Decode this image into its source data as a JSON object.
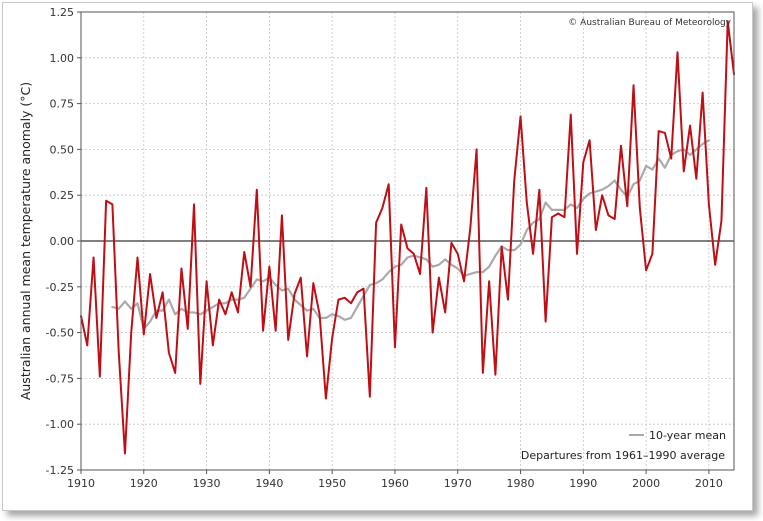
{
  "copyright": "© Australian Bureau of Meteorology",
  "chart_data": {
    "type": "line",
    "title": "",
    "xlabel": "",
    "ylabel": "Australian annual mean temperature anomaly (°C)",
    "xlim": [
      1910,
      2014
    ],
    "ylim": [
      -1.25,
      1.25
    ],
    "xticks": [
      1910,
      1920,
      1930,
      1940,
      1950,
      1960,
      1970,
      1980,
      1990,
      2000,
      2010
    ],
    "xtick_labels": [
      "1910",
      "1920",
      "1930",
      "1940",
      "1950",
      "1960",
      "1970",
      "1980",
      "1990",
      "2000",
      "2010"
    ],
    "yticks": [
      -1.25,
      -1.0,
      -0.75,
      -0.5,
      -0.25,
      0.0,
      0.25,
      0.5,
      0.75,
      1.0,
      1.25
    ],
    "ytick_labels": [
      "-1.25",
      "-1.00",
      "-0.75",
      "-0.50",
      "-0.25",
      "0.00",
      "0.25",
      "0.50",
      "0.75",
      "1.00",
      "1.25"
    ],
    "grid": true,
    "legend_position": "bottom-right",
    "annotation": "Departures from 1961–1990 average",
    "series": [
      {
        "name": "",
        "color": "#bf0f16",
        "x": [
          1910,
          1911,
          1912,
          1913,
          1914,
          1915,
          1916,
          1917,
          1918,
          1919,
          1920,
          1921,
          1922,
          1923,
          1924,
          1925,
          1926,
          1927,
          1928,
          1929,
          1930,
          1931,
          1932,
          1933,
          1934,
          1935,
          1936,
          1937,
          1938,
          1939,
          1940,
          1941,
          1942,
          1943,
          1944,
          1945,
          1946,
          1947,
          1948,
          1949,
          1950,
          1951,
          1952,
          1953,
          1954,
          1955,
          1956,
          1957,
          1958,
          1959,
          1960,
          1961,
          1962,
          1963,
          1964,
          1965,
          1966,
          1967,
          1968,
          1969,
          1970,
          1971,
          1972,
          1973,
          1974,
          1975,
          1976,
          1977,
          1978,
          1979,
          1980,
          1981,
          1982,
          1983,
          1984,
          1985,
          1986,
          1987,
          1988,
          1989,
          1990,
          1991,
          1992,
          1993,
          1994,
          1995,
          1996,
          1997,
          1998,
          1999,
          2000,
          2001,
          2002,
          2003,
          2004,
          2005,
          2006,
          2007,
          2008,
          2009,
          2010,
          2011,
          2012,
          2013,
          2014
        ],
        "values": [
          -0.41,
          -0.57,
          -0.09,
          -0.74,
          0.22,
          0.2,
          -0.6,
          -1.16,
          -0.5,
          -0.09,
          -0.51,
          -0.18,
          -0.42,
          -0.28,
          -0.61,
          -0.72,
          -0.15,
          -0.48,
          0.2,
          -0.78,
          -0.22,
          -0.57,
          -0.32,
          -0.4,
          -0.28,
          -0.39,
          -0.06,
          -0.25,
          0.28,
          -0.49,
          -0.14,
          -0.49,
          0.14,
          -0.54,
          -0.29,
          -0.2,
          -0.63,
          -0.23,
          -0.4,
          -0.86,
          -0.53,
          -0.32,
          -0.31,
          -0.34,
          -0.28,
          -0.26,
          -0.85,
          0.1,
          0.18,
          0.31,
          -0.58,
          0.09,
          -0.04,
          -0.07,
          -0.18,
          0.29,
          -0.5,
          -0.2,
          -0.39,
          -0.01,
          -0.07,
          -0.22,
          0.07,
          0.5,
          -0.72,
          -0.22,
          -0.73,
          -0.03,
          -0.32,
          0.33,
          0.68,
          0.21,
          -0.07,
          0.28,
          -0.44,
          0.13,
          0.15,
          0.13,
          0.69,
          -0.07,
          0.43,
          0.55,
          0.06,
          0.25,
          0.14,
          0.12,
          0.52,
          0.19,
          0.85,
          0.18,
          -0.16,
          -0.07,
          0.6,
          0.59,
          0.45,
          1.03,
          0.38,
          0.63,
          0.34,
          0.81,
          0.2,
          -0.13,
          0.11,
          1.2,
          0.91
        ]
      },
      {
        "name": "10-year mean",
        "color": "#aaaaaa",
        "x": [
          1915,
          1916,
          1917,
          1918,
          1919,
          1920,
          1921,
          1922,
          1923,
          1924,
          1925,
          1926,
          1927,
          1928,
          1929,
          1930,
          1931,
          1932,
          1933,
          1934,
          1935,
          1936,
          1937,
          1938,
          1939,
          1940,
          1941,
          1942,
          1943,
          1944,
          1945,
          1946,
          1947,
          1948,
          1949,
          1950,
          1951,
          1952,
          1953,
          1954,
          1955,
          1956,
          1957,
          1958,
          1959,
          1960,
          1961,
          1962,
          1963,
          1964,
          1965,
          1966,
          1967,
          1968,
          1969,
          1970,
          1971,
          1972,
          1973,
          1974,
          1975,
          1976,
          1977,
          1978,
          1979,
          1980,
          1981,
          1982,
          1983,
          1984,
          1985,
          1986,
          1987,
          1988,
          1989,
          1990,
          1991,
          1992,
          1993,
          1994,
          1995,
          1996,
          1997,
          1998,
          1999,
          2000,
          2001,
          2002,
          2003,
          2004,
          2005,
          2006,
          2007,
          2008,
          2009,
          2010
        ],
        "values": [
          -0.36,
          -0.37,
          -0.33,
          -0.37,
          -0.34,
          -0.48,
          -0.44,
          -0.38,
          -0.38,
          -0.32,
          -0.4,
          -0.37,
          -0.39,
          -0.39,
          -0.4,
          -0.38,
          -0.36,
          -0.34,
          -0.34,
          -0.32,
          -0.32,
          -0.31,
          -0.26,
          -0.21,
          -0.22,
          -0.2,
          -0.24,
          -0.27,
          -0.26,
          -0.32,
          -0.35,
          -0.38,
          -0.37,
          -0.42,
          -0.42,
          -0.4,
          -0.41,
          -0.43,
          -0.42,
          -0.36,
          -0.3,
          -0.24,
          -0.23,
          -0.21,
          -0.17,
          -0.14,
          -0.13,
          -0.09,
          -0.08,
          -0.09,
          -0.1,
          -0.14,
          -0.13,
          -0.1,
          -0.13,
          -0.15,
          -0.19,
          -0.18,
          -0.17,
          -0.17,
          -0.14,
          -0.08,
          -0.03,
          -0.05,
          -0.05,
          -0.02,
          0.06,
          0.1,
          0.12,
          0.21,
          0.17,
          0.17,
          0.17,
          0.2,
          0.18,
          0.23,
          0.26,
          0.27,
          0.28,
          0.3,
          0.33,
          0.28,
          0.24,
          0.31,
          0.33,
          0.41,
          0.39,
          0.45,
          0.4,
          0.47,
          0.49,
          0.5,
          0.47,
          0.5,
          0.53,
          0.55
        ]
      }
    ]
  }
}
